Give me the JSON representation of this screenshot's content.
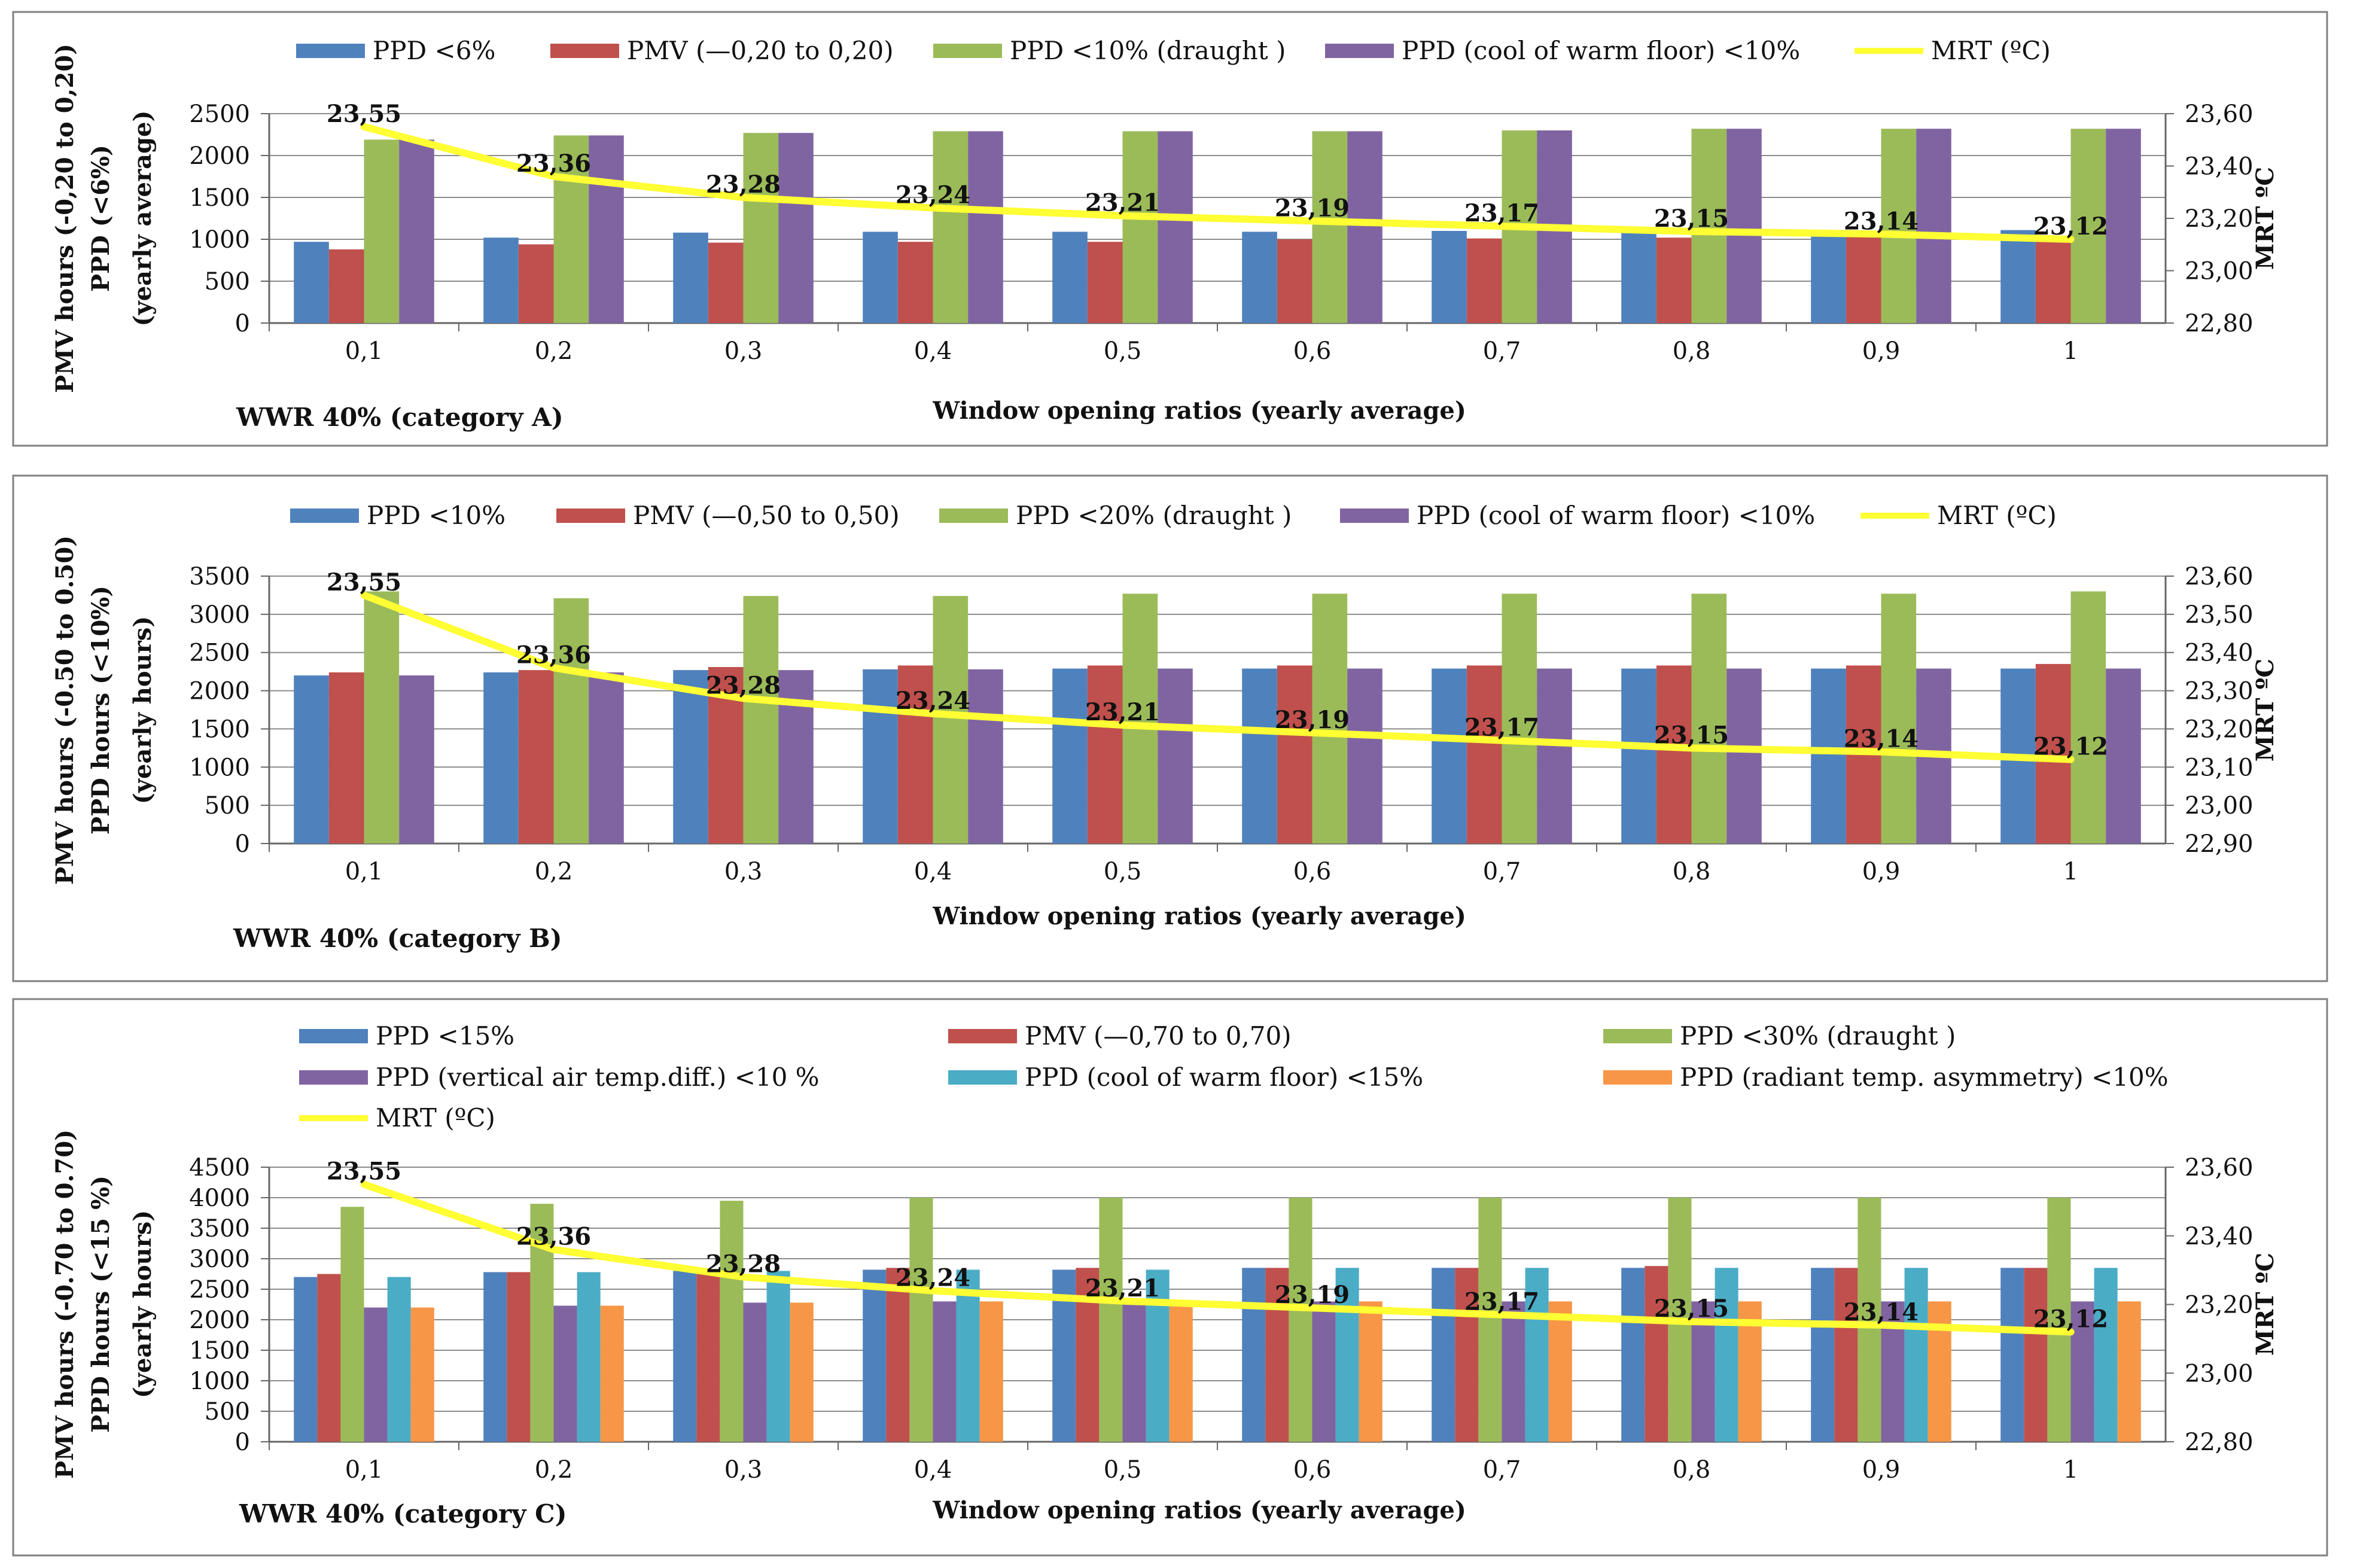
{
  "colors": {
    "blue": "#4F81BD",
    "red": "#C0504D",
    "green": "#9BBB59",
    "purple": "#8064A2",
    "cyan": "#4BACC6",
    "orange": "#F79646",
    "yellow": "#FFFF33"
  },
  "chart_data": [
    {
      "type": "bar",
      "note": "WWR 40% (category A)",
      "xlabel": "Window opening ratios (yearly average)",
      "ylabel": [
        "PMV hours (-0,20 to 0,20)",
        "PPD (<6%)",
        "(yearly average)"
      ],
      "y2label": "MRT ºC",
      "categories": [
        "0,1",
        "0,2",
        "0,3",
        "0,4",
        "0,5",
        "0,6",
        "0,7",
        "0,8",
        "0,9",
        "1"
      ],
      "ylim": [
        0,
        2500
      ],
      "yticks": [
        0,
        500,
        1000,
        1500,
        2000,
        2500
      ],
      "y2lim": [
        22.8,
        23.6
      ],
      "y2ticks": [
        "22,80",
        "23,00",
        "23,20",
        "23,40",
        "23,60"
      ],
      "series": [
        {
          "name": "PPD <6%",
          "color": "blue",
          "values": [
            970,
            1020,
            1080,
            1090,
            1090,
            1090,
            1100,
            1100,
            1100,
            1110
          ]
        },
        {
          "name": "PMV (—0,20 to 0,20)",
          "color": "red",
          "values": [
            880,
            940,
            960,
            970,
            970,
            1000,
            1010,
            1020,
            1030,
            1040
          ]
        },
        {
          "name": "PPD <10% (draught )",
          "color": "green",
          "values": [
            2190,
            2240,
            2270,
            2290,
            2290,
            2290,
            2300,
            2320,
            2320,
            2320
          ]
        },
        {
          "name": "PPD (cool of warm floor) <10%",
          "color": "purple",
          "values": [
            2190,
            2240,
            2270,
            2290,
            2290,
            2290,
            2300,
            2320,
            2320,
            2320
          ]
        }
      ],
      "line": {
        "name": "MRT (ºC)",
        "color": "yellow",
        "values": [
          23.55,
          23.36,
          23.28,
          23.24,
          23.21,
          23.19,
          23.17,
          23.15,
          23.14,
          23.12
        ],
        "labels": [
          "23,55",
          "23,36",
          "23,28",
          "23,24",
          "23,21",
          "23,19",
          "23,17",
          "23,15",
          "23,14",
          "23,12"
        ]
      }
    },
    {
      "type": "bar",
      "note": "WWR 40% (category B)",
      "xlabel": "Window opening ratios (yearly average)",
      "ylabel": [
        "PMV hours (-0.50 to 0.50)",
        "PPD hours (<10%)",
        "(yearly hours)"
      ],
      "y2label": "MRT ºC",
      "categories": [
        "0,1",
        "0,2",
        "0,3",
        "0,4",
        "0,5",
        "0,6",
        "0,7",
        "0,8",
        "0,9",
        "1"
      ],
      "ylim": [
        0,
        3500
      ],
      "yticks": [
        0,
        500,
        1000,
        1500,
        2000,
        2500,
        3000,
        3500
      ],
      "y2lim": [
        22.9,
        23.6
      ],
      "y2ticks": [
        "22,90",
        "23,00",
        "23,10",
        "23,20",
        "23,30",
        "23,40",
        "23,50",
        "23,60"
      ],
      "series": [
        {
          "name": "PPD <10%",
          "color": "blue",
          "values": [
            2200,
            2240,
            2270,
            2280,
            2290,
            2290,
            2290,
            2290,
            2290,
            2290
          ]
        },
        {
          "name": "PMV (—0,50 to 0,50)",
          "color": "red",
          "values": [
            2240,
            2270,
            2310,
            2330,
            2330,
            2330,
            2330,
            2330,
            2330,
            2350
          ]
        },
        {
          "name": "PPD <20% (draught )",
          "color": "green",
          "values": [
            3300,
            3210,
            3240,
            3240,
            3270,
            3270,
            3270,
            3270,
            3270,
            3300
          ]
        },
        {
          "name": "PPD (cool of warm floor) <10%",
          "color": "purple",
          "values": [
            2200,
            2240,
            2270,
            2280,
            2290,
            2290,
            2290,
            2290,
            2290,
            2290
          ]
        }
      ],
      "line": {
        "name": "MRT (ºC)",
        "color": "yellow",
        "values": [
          23.55,
          23.36,
          23.28,
          23.24,
          23.21,
          23.19,
          23.17,
          23.15,
          23.14,
          23.12
        ],
        "labels": [
          "23,55",
          "23,36",
          "23,28",
          "23,24",
          "23,21",
          "23,19",
          "23,17",
          "23,15",
          "23,14",
          "23,12"
        ]
      }
    },
    {
      "type": "bar",
      "note": "WWR 40% (category C)",
      "xlabel": "Window opening ratios (yearly average)",
      "ylabel": [
        "PMV hours (-0.70 to 0.70)",
        "PPD hours (<15 %)",
        "(yearly hours)"
      ],
      "y2label": "MRT ºC",
      "categories": [
        "0,1",
        "0,2",
        "0,3",
        "0,4",
        "0,5",
        "0,6",
        "0,7",
        "0,8",
        "0,9",
        "1"
      ],
      "ylim": [
        0,
        4500
      ],
      "yticks": [
        0,
        500,
        1000,
        1500,
        2000,
        2500,
        3000,
        3500,
        4000,
        4500
      ],
      "y2lim": [
        22.8,
        23.6
      ],
      "y2ticks": [
        "22,80",
        "23,00",
        "23,20",
        "23,40",
        "23,60"
      ],
      "series": [
        {
          "name": "PPD <15%",
          "color": "blue",
          "values": [
            2700,
            2780,
            2800,
            2820,
            2820,
            2850,
            2850,
            2850,
            2850,
            2850
          ]
        },
        {
          "name": "PMV (—0,70 to 0,70)",
          "color": "red",
          "values": [
            2750,
            2780,
            2830,
            2850,
            2850,
            2850,
            2850,
            2880,
            2850,
            2850
          ]
        },
        {
          "name": "PPD <30% (draught )",
          "color": "green",
          "values": [
            3850,
            3900,
            3950,
            4000,
            4000,
            4000,
            4000,
            4000,
            4000,
            4000
          ]
        },
        {
          "name": "PPD (vertical air temp.diff.) <10 %",
          "color": "purple",
          "values": [
            2200,
            2230,
            2280,
            2300,
            2300,
            2300,
            2300,
            2300,
            2300,
            2300
          ]
        },
        {
          "name": "PPD (cool of warm floor) <15%",
          "color": "cyan",
          "values": [
            2700,
            2780,
            2800,
            2820,
            2820,
            2850,
            2850,
            2850,
            2850,
            2850
          ]
        },
        {
          "name": "PPD (radiant temp. asymmetry) <10%",
          "color": "orange",
          "values": [
            2200,
            2230,
            2280,
            2300,
            2300,
            2300,
            2300,
            2300,
            2300,
            2300
          ]
        }
      ],
      "line": {
        "name": "MRT (ºC)",
        "color": "yellow",
        "values": [
          23.55,
          23.36,
          23.28,
          23.24,
          23.21,
          23.19,
          23.17,
          23.15,
          23.14,
          23.12
        ],
        "labels": [
          "23,55",
          "23,36",
          "23,28",
          "23,24",
          "23,21",
          "23,19",
          "23,17",
          "23,15",
          "23,14",
          "23,12"
        ]
      }
    }
  ]
}
